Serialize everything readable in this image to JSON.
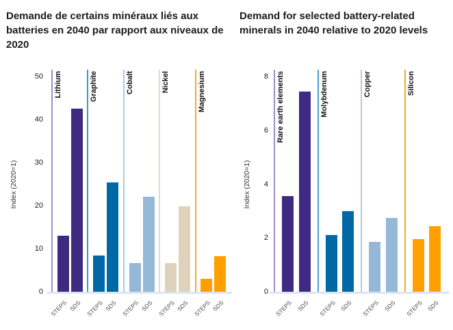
{
  "accent_colors": {
    "purple": "#3E2A80",
    "dark_blue": "#0069A5",
    "light_blue": "#95B8D8",
    "beige": "#DED2BB",
    "orange": "#FFA000"
  },
  "chart_data": [
    {
      "type": "bar",
      "title": "Demande de certains minéraux liés aux batteries en 2040 par rapport aux niveaux de 2020",
      "ylabel": "Index (2020=1)",
      "ymax": 50,
      "yticks": [
        0,
        10,
        20,
        30,
        40,
        50
      ],
      "series": [
        "STEPS",
        "SDS"
      ],
      "grid": false,
      "legend": "none",
      "groups": [
        {
          "category": "Lithium",
          "bar_color": "#3E2A80",
          "line_color": "#9A8FC6",
          "values": [
            13.0,
            42.5
          ]
        },
        {
          "category": "Graphite",
          "bar_color": "#0069A5",
          "line_color": "#3E95C5",
          "values": [
            8.4,
            25.4
          ]
        },
        {
          "category": "Cobalt",
          "bar_color": "#95B8D8",
          "line_color": "#AFCAE1",
          "values": [
            6.7,
            22.0
          ]
        },
        {
          "category": "Nickel",
          "bar_color": "#DED2BB",
          "line_color": "#E3D9C5",
          "values": [
            6.7,
            19.9
          ]
        },
        {
          "category": "Magnesium",
          "bar_color": "#FFA000",
          "line_color": "#F7A823",
          "values": [
            3.0,
            8.3
          ]
        }
      ]
    },
    {
      "type": "bar",
      "title": "Demand for selected battery-related minerals in 2040 relative to 2020 levels",
      "ylabel": "Index (2020=1)",
      "ymax": 8,
      "yticks": [
        0,
        2,
        4,
        6,
        8
      ],
      "series": [
        "STEPS",
        "SDS"
      ],
      "grid": false,
      "legend": "none",
      "groups": [
        {
          "category": "Rare earth elements",
          "bar_color": "#3E2A80",
          "line_color": "#9A8FC6",
          "values": [
            3.55,
            7.45
          ]
        },
        {
          "category": "Molybdenum",
          "bar_color": "#0069A5",
          "line_color": "#4A9FCD",
          "values": [
            2.1,
            3.0
          ]
        },
        {
          "category": "Copper",
          "bar_color": "#95B8D8",
          "line_color": "#AFCAE1",
          "values": [
            1.85,
            2.75
          ]
        },
        {
          "category": "Silicon",
          "bar_color": "#FFA000",
          "line_color": "#F7A823",
          "values": [
            1.95,
            2.45
          ]
        }
      ]
    }
  ]
}
